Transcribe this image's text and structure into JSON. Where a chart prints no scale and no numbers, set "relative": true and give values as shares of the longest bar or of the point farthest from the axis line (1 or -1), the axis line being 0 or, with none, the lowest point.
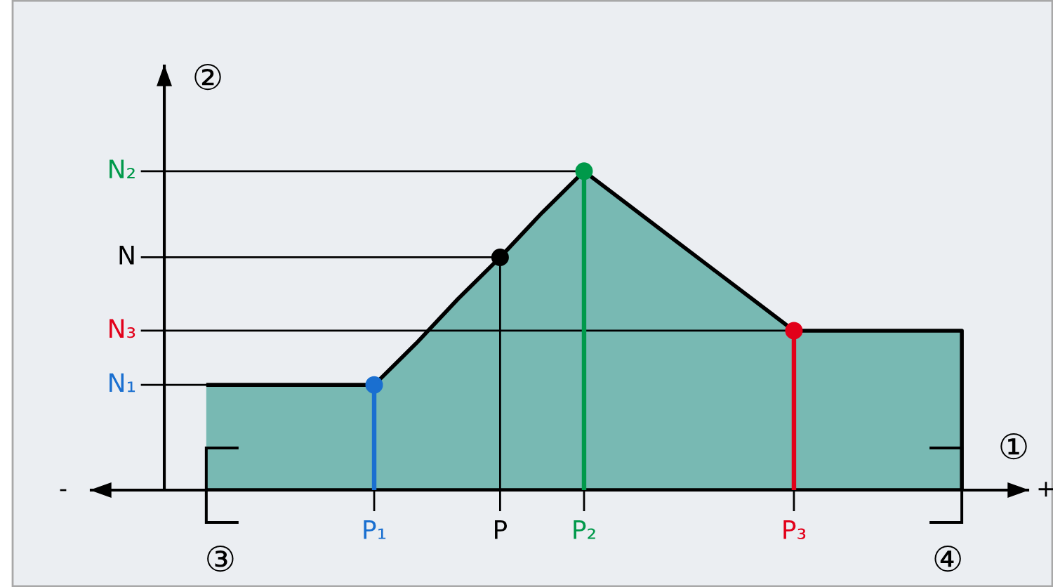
{
  "chart_data": {
    "type": "area",
    "relative": true,
    "xlabel": "①",
    "ylabel": "②",
    "categories": [
      null,
      null,
      null,
      null,
      "P₁",
      null,
      null,
      "P",
      null,
      "P₂",
      null,
      null,
      null,
      null,
      "P₃",
      null,
      null,
      null,
      null
    ],
    "series": [
      {
        "color": "#78b9b3",
        "values": [
          0.33,
          0.33,
          0.33,
          0.33,
          0.33,
          0.46,
          0.6,
          0.73,
          0.87,
          1,
          0.9,
          0.8,
          0.7,
          0.6,
          0.5,
          0.5,
          0.5,
          0.5,
          0.5
        ]
      },
      {
        "type": "lollipop",
        "marker": "circle",
        "x": [
          "P₁",
          "P₂",
          "P₃"
        ],
        "values": [
          0.33,
          1,
          0.5
        ],
        "colors": [
          "#1a6fd0",
          "#00994a",
          "#e2001a"
        ]
      },
      {
        "type": "scatter",
        "marker": "circle",
        "x": [
          "P"
        ],
        "values": [
          0.73
        ],
        "color": "#000000"
      }
    ],
    "ref_lines": [
      {
        "axis": "y",
        "value": 0.33,
        "label": "N₁"
      },
      {
        "axis": "y",
        "value": 0.5,
        "label": "N₃"
      },
      {
        "axis": "y",
        "value": 0.73,
        "label": "N"
      },
      {
        "axis": "y",
        "value": 1,
        "label": "N₂"
      }
    ],
    "annotations": [
      "-",
      "+",
      "③",
      "④"
    ]
  }
}
